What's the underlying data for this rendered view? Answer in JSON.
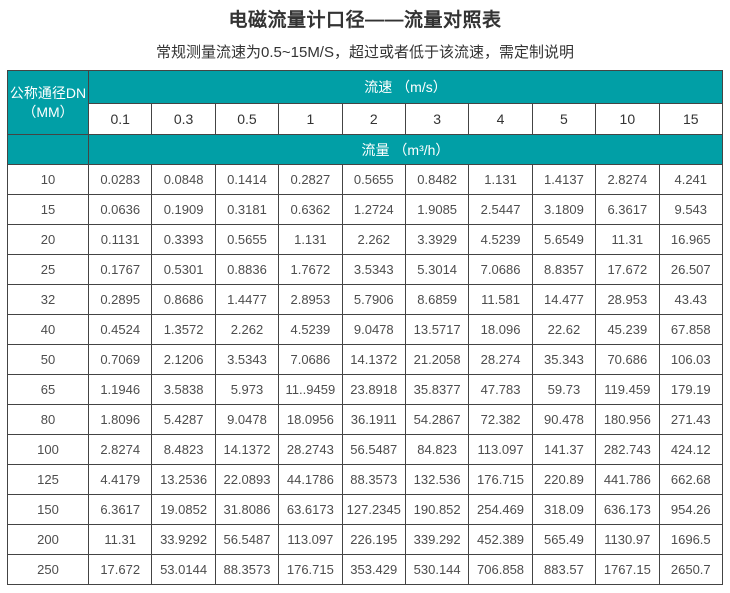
{
  "page": {
    "title": "电磁流量计口径——流量对照表",
    "subtitle": "常规测量流速为0.5~15M/S，超过或者低于该流速，需定制说明"
  },
  "colors": {
    "header_teal": "#019fa6",
    "border_gray": "#444444",
    "text_dark": "#333333",
    "text_data": "#4d4d4d"
  },
  "table": {
    "corner_header_line1": "公称通径DN",
    "corner_header_line2": "（MM）",
    "velocity_band_label": "流速 （m/s）",
    "flow_band_label": "流量 （m³/h）",
    "velocities": [
      "0.1",
      "0.3",
      "0.5",
      "1",
      "2",
      "3",
      "4",
      "5",
      "10",
      "15"
    ],
    "rows": [
      {
        "dn": "10",
        "values": [
          "0.0283",
          "0.0848",
          "0.1414",
          "0.2827",
          "0.5655",
          "0.8482",
          "1.131",
          "1.4137",
          "2.8274",
          "4.241"
        ]
      },
      {
        "dn": "15",
        "values": [
          "0.0636",
          "0.1909",
          "0.3181",
          "0.6362",
          "1.2724",
          "1.9085",
          "2.5447",
          "3.1809",
          "6.3617",
          "9.543"
        ]
      },
      {
        "dn": "20",
        "values": [
          "0.1131",
          "0.3393",
          "0.5655",
          "1.131",
          "2.262",
          "3.3929",
          "4.5239",
          "5.6549",
          "11.31",
          "16.965"
        ]
      },
      {
        "dn": "25",
        "values": [
          "0.1767",
          "0.5301",
          "0.8836",
          "1.7672",
          "3.5343",
          "5.3014",
          "7.0686",
          "8.8357",
          "17.672",
          "26.507"
        ]
      },
      {
        "dn": "32",
        "values": [
          "0.2895",
          "0.8686",
          "1.4477",
          "2.8953",
          "5.7906",
          "8.6859",
          "11.581",
          "14.477",
          "28.953",
          "43.43"
        ]
      },
      {
        "dn": "40",
        "values": [
          "0.4524",
          "1.3572",
          "2.262",
          "4.5239",
          "9.0478",
          "13.5717",
          "18.096",
          "22.62",
          "45.239",
          "67.858"
        ]
      },
      {
        "dn": "50",
        "values": [
          "0.7069",
          "2.1206",
          "3.5343",
          "7.0686",
          "14.1372",
          "21.2058",
          "28.274",
          "35.343",
          "70.686",
          "106.03"
        ]
      },
      {
        "dn": "65",
        "values": [
          "1.1946",
          "3.5838",
          "5.973",
          "11..9459",
          "23.8918",
          "35.8377",
          "47.783",
          "59.73",
          "119.459",
          "179.19"
        ]
      },
      {
        "dn": "80",
        "values": [
          "1.8096",
          "5.4287",
          "9.0478",
          "18.0956",
          "36.1911",
          "54.2867",
          "72.382",
          "90.478",
          "180.956",
          "271.43"
        ]
      },
      {
        "dn": "100",
        "values": [
          "2.8274",
          "8.4823",
          "14.1372",
          "28.2743",
          "56.5487",
          "84.823",
          "113.097",
          "141.37",
          "282.743",
          "424.12"
        ]
      },
      {
        "dn": "125",
        "values": [
          "4.4179",
          "13.2536",
          "22.0893",
          "44.1786",
          "88.3573",
          "132.536",
          "176.715",
          "220.89",
          "441.786",
          "662.68"
        ]
      },
      {
        "dn": "150",
        "values": [
          "6.3617",
          "19.0852",
          "31.8086",
          "63.6173",
          "127.2345",
          "190.852",
          "254.469",
          "318.09",
          "636.173",
          "954.26"
        ]
      },
      {
        "dn": "200",
        "values": [
          "11.31",
          "33.9292",
          "56.5487",
          "113.097",
          "226.195",
          "339.292",
          "452.389",
          "565.49",
          "1130.97",
          "1696.5"
        ]
      },
      {
        "dn": "250",
        "values": [
          "17.672",
          "53.0144",
          "88.3573",
          "176.715",
          "353.429",
          "530.144",
          "706.858",
          "883.57",
          "1767.15",
          "2650.7"
        ]
      }
    ]
  }
}
